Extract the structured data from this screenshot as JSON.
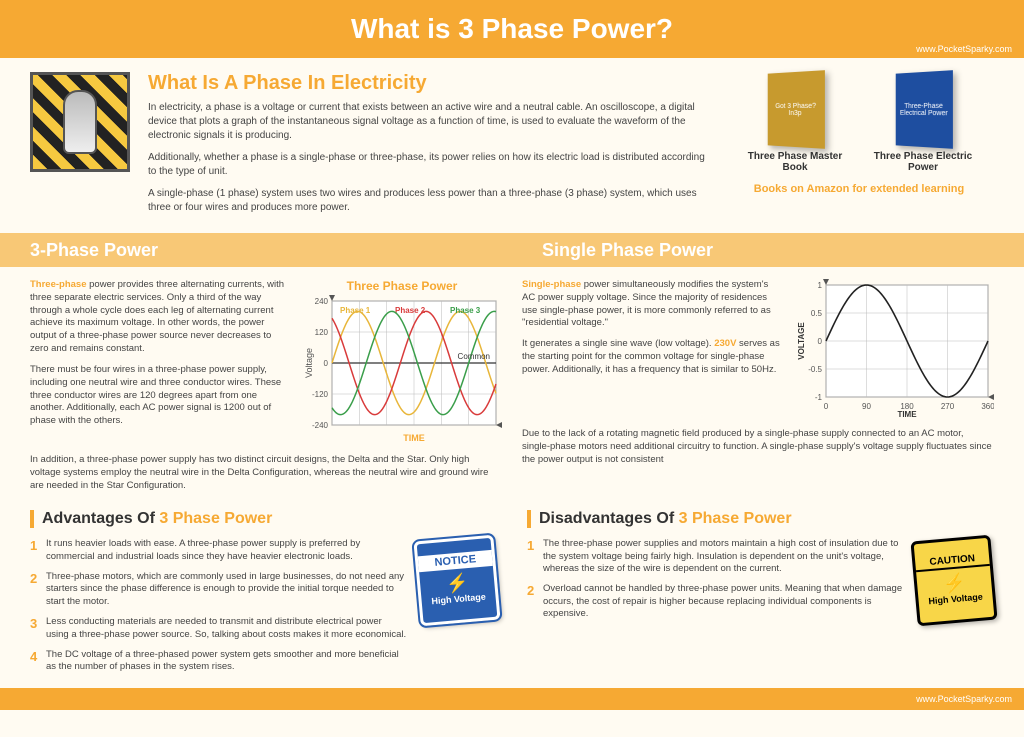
{
  "colors": {
    "accent": "#f6a933",
    "band": "#f8c876",
    "bg": "#fffbf2",
    "text": "#444444",
    "phase1": "#e8b63a",
    "phase2": "#d93b3b",
    "phase3": "#3a9e4a",
    "common": "#333333",
    "single_line": "#222222",
    "grid": "#bbbbbb",
    "notice_blue": "#2a5fb0",
    "caution_yellow": "#f8d648"
  },
  "header": {
    "title": "What is 3 Phase Power?",
    "url": "www.PocketSparky.com"
  },
  "intro": {
    "title": "What Is A Phase In Electricity",
    "p1": "In electricity, a phase is a voltage or current that exists between an active wire and a neutral cable. An oscilloscope, a digital device that plots a graph of the instantaneous signal voltage as a function of time, is used to evaluate the waveform of the electronic signals it is producing.",
    "p2": "Additionally, whether a phase is a single-phase or three-phase, its power relies on how its electric load is distributed according to the type of unit.",
    "p3": "A single-phase (1 phase) system uses two wires and produces less power than a three-phase (3 phase) system, which uses three or four wires and produces more power."
  },
  "books": {
    "caption": "Books on Amazon for extended learning",
    "items": [
      {
        "title": "Three Phase Master Book",
        "cover_bg": "#c79a2e",
        "cover_text": "Got 3 Phase? In3p"
      },
      {
        "title": "Three Phase Electric Power",
        "cover_bg": "#1e4ea0",
        "cover_text": "Three-Phase Electrical Power"
      }
    ]
  },
  "band": {
    "left": "3-Phase Power",
    "right": "Single Phase Power"
  },
  "three_phase": {
    "p1a": "Three-phase",
    "p1b": " power provides three alternating currents, with three separate electric services. Only a third of the way through a whole cycle does each leg of alternating current achieve its maximum voltage. In other words, the power output of a three-phase power source never decreases to zero and remains constant.",
    "p2": "There must be four wires in a three-phase power supply, including one neutral wire and three conductor wires. These three conductor wires are 120 degrees apart from one another. Additionally, each AC power signal is 1200 out of phase with the others.",
    "footer": "In addition, a three-phase power supply has two distinct circuit designs, the Delta and the Star. Only high voltage systems employ the neutral wire in the Delta Configuration, whereas the neutral wire and ground wire are needed in the Star Configuration.",
    "chart": {
      "title": "Three Phase Power",
      "xlabel": "TIME",
      "ylabel": "Voltage",
      "ylim": [
        -240,
        240
      ],
      "yticks": [
        -240,
        -120,
        0,
        120,
        240
      ],
      "series": [
        {
          "name": "Phase 1",
          "color": "#e8b63a",
          "offset_deg": 0
        },
        {
          "name": "Phase 2",
          "color": "#d93b3b",
          "offset_deg": 120
        },
        {
          "name": "Phase 3",
          "color": "#3a9e4a",
          "offset_deg": 240
        }
      ],
      "common_label": "Common",
      "common_color": "#333333",
      "amplitude": 200,
      "cycles": 1.6
    }
  },
  "single_phase": {
    "p1a": "Single-phase",
    "p1b": " power simultaneously modifies the system's AC power supply voltage. Since the majority of residences use single-phase power, it is more commonly referred to as \"residential voltage.\"",
    "p2a": "It generates a single sine wave (low voltage). ",
    "p2b": "230V",
    "p2c": " serves as the starting point for the common voltage for single-phase power. Additionally, it has a frequency that is similar to 50Hz.",
    "footer": "Due to the lack of a rotating magnetic field produced by a single-phase supply connected to an AC motor, single-phase motors need additional circuitry to function. A single-phase supply's voltage supply fluctuates since the power output is not consistent",
    "chart": {
      "xlabel": "TIME",
      "ylabel": "VOLTAGE",
      "ylim": [
        -1,
        1
      ],
      "yticks": [
        -1,
        -0.5,
        0,
        0.5,
        1
      ],
      "xticks": [
        0,
        90,
        180,
        270,
        360
      ],
      "line_color": "#222222",
      "amplitude": 1,
      "cycles": 1
    }
  },
  "advantages": {
    "title_a": "Advantages Of ",
    "title_b": "3 Phase Power",
    "items": [
      "It runs heavier loads with ease. A three-phase power supply is preferred by commercial and industrial loads since they have heavier electronic loads.",
      "Three-phase motors, which are commonly used in large businesses, do not need any starters since the phase difference is enough to provide the initial torque needed to start the motor.",
      "Less conducting materials are needed to transmit and distribute electrical power using a three-phase power source. So, talking about costs makes it more economical.",
      "The DC voltage of a three-phased power system gets smoother and more beneficial as the number of phases in the system rises."
    ],
    "sign": {
      "head": "NOTICE",
      "body": "High Voltage"
    }
  },
  "disadvantages": {
    "title_a": "Disadvantages Of ",
    "title_b": "3 Phase Power",
    "items": [
      "The three-phase power supplies and motors maintain a high cost of insulation due to the system voltage being fairly high. Insulation is dependent on the unit's voltage, whereas the size of the wire is dependent on the current.",
      "Overload cannot be handled by three-phase power units. Meaning that when damage occurs, the cost of repair is higher because replacing individual components is expensive."
    ],
    "sign": {
      "head": "CAUTION",
      "body": "High Voltage"
    }
  },
  "footer": {
    "url": "www.PocketSparky.com"
  }
}
